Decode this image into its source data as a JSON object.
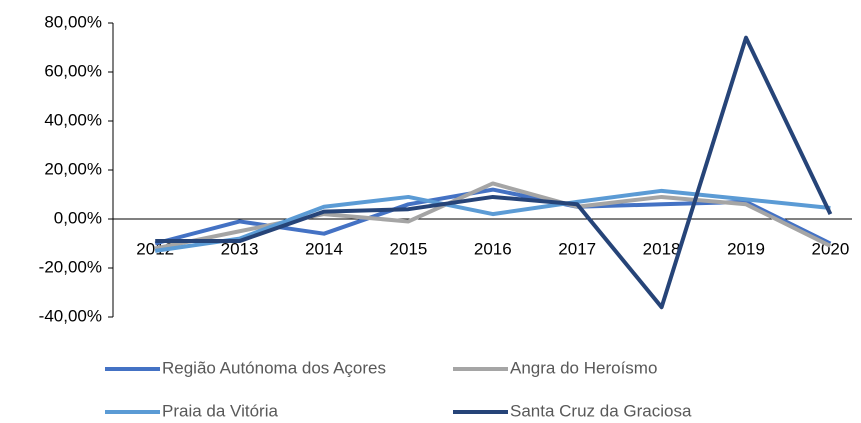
{
  "chart_data": {
    "type": "line",
    "categories": [
      "2012",
      "2013",
      "2014",
      "2015",
      "2016",
      "2017",
      "2018",
      "2019",
      "2020"
    ],
    "series": [
      {
        "name": "Região Autónoma dos Açores",
        "color": "#4472c4",
        "values": [
          -10,
          -1,
          -6,
          6,
          12,
          5,
          6,
          7,
          -10
        ]
      },
      {
        "name": "Angra do Heroísmo",
        "color": "#a5a5a5",
        "values": [
          -12,
          -5,
          2,
          -1,
          14.5,
          5,
          9,
          6,
          -11
        ]
      },
      {
        "name": "Praia da Vitória",
        "color": "#5b9bd5",
        "values": [
          -13,
          -8,
          5,
          9,
          2,
          7,
          11.5,
          8,
          4.5
        ]
      },
      {
        "name": "Santa Cruz da Graciosa",
        "color": "#264478",
        "values": [
          -9,
          -9,
          3,
          4,
          9,
          6,
          -36,
          74,
          2
        ]
      }
    ],
    "ylim": [
      -40,
      80
    ],
    "yticks": [
      {
        "value": -40,
        "label": "-40,00%"
      },
      {
        "value": -20,
        "label": "-20,00%"
      },
      {
        "value": 0,
        "label": "0,00%"
      },
      {
        "value": 20,
        "label": "20,00%"
      },
      {
        "value": 40,
        "label": "40,00%"
      },
      {
        "value": 60,
        "label": "60,00%"
      },
      {
        "value": 80,
        "label": "80,00%"
      }
    ],
    "legend": "bottom"
  }
}
